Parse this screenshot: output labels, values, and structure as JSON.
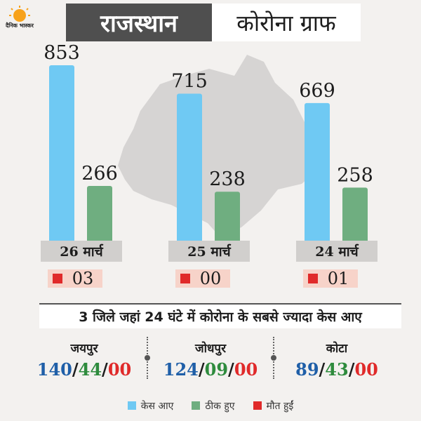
{
  "logo": {
    "text": "दैनिक भास्कर",
    "accent": "#f7a21b"
  },
  "header": {
    "title_left": "राजस्थान",
    "title_right": "कोरोना ग्राफ"
  },
  "colors": {
    "cases": "#6fc9f3",
    "recovered": "#6fae80",
    "deaths": "#e02a2a",
    "cases_text": "#1f5fa8",
    "recovered_text": "#2e8b3d",
    "deaths_text": "#e02a2a",
    "date_band": "#d1cfcd",
    "death_band": "#f7d3c9"
  },
  "chart_data": {
    "type": "bar",
    "categories": [
      "26 मार्च",
      "25 मार्च",
      "24 मार्च"
    ],
    "series": [
      {
        "name": "केस आए",
        "values": [
          853,
          715,
          669
        ]
      },
      {
        "name": "ठीक हुए",
        "values": [
          266,
          238,
          258
        ]
      }
    ],
    "deaths": [
      "03",
      "00",
      "01"
    ],
    "legend_position": "bottom",
    "grid": false
  },
  "districts_heading": "3 जिले जहां 24 घंटे में कोरोना के सबसे ज्यादा केस आए",
  "districts": [
    {
      "name": "जयपुर",
      "cases": "140",
      "recovered": "44",
      "deaths": "00"
    },
    {
      "name": "जोधपुर",
      "cases": "124",
      "recovered": "09",
      "deaths": "00"
    },
    {
      "name": "कोटा",
      "cases": "89",
      "recovered": "43",
      "deaths": "00"
    }
  ],
  "separator": "/",
  "legend": [
    {
      "label": "केस आए",
      "key": "cases"
    },
    {
      "label": "ठीक हुए",
      "key": "recovered"
    },
    {
      "label": "मौत हुईं",
      "key": "deaths"
    }
  ]
}
